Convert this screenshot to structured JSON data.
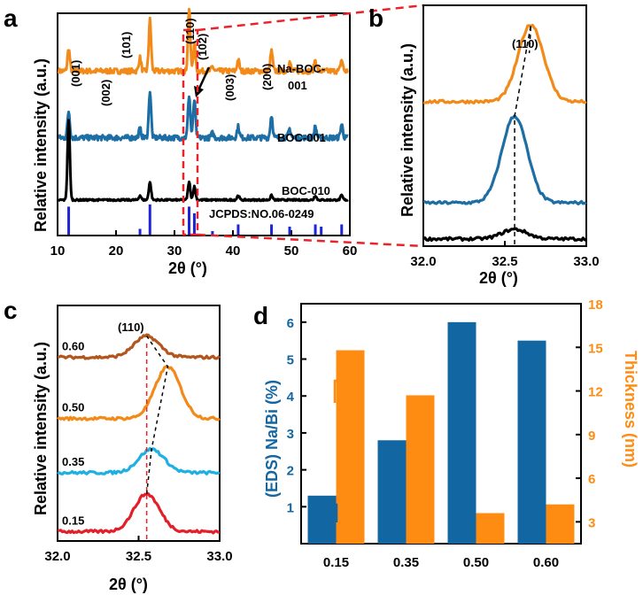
{
  "colors": {
    "orange": "#f28a1a",
    "blue": "#1c6ea4",
    "black": "#000000",
    "stick": "#1f24d6",
    "red_dash": "#e8242a",
    "brown": "#b3561d",
    "lightblue": "#1fb0e2",
    "red": "#e3202a",
    "bar_blue": "#1266a2",
    "bar_orange": "#ff8c12"
  },
  "chart_data": [
    {
      "panel": "a",
      "type": "line",
      "xlabel": "2θ (°)",
      "ylabel": "Relative intensity (a.u.)",
      "xlim": [
        10,
        60
      ],
      "xticks": [
        "10",
        "20",
        "30",
        "40",
        "50",
        "60"
      ],
      "series": [
        {
          "name": "Na-BOC-001",
          "label_lines": [
            "Na-BOC-",
            "001"
          ],
          "color": "#f28a1a",
          "baseline": 0.74,
          "noise": 0.012,
          "peaks": [
            [
              11.9,
              0.1
            ],
            [
              24.1,
              0.06
            ],
            [
              25.8,
              0.23
            ],
            [
              32.5,
              0.28
            ],
            [
              33.4,
              0.12
            ],
            [
              36.5,
              0.02
            ],
            [
              40.9,
              0.05
            ],
            [
              46.6,
              0.09
            ],
            [
              49.7,
              0.04
            ],
            [
              54.1,
              0.05
            ],
            [
              58.6,
              0.05
            ]
          ]
        },
        {
          "name": "BOC-001",
          "color": "#1c6ea4",
          "baseline": 0.44,
          "noise": 0.012,
          "peaks": [
            [
              11.9,
              0.12
            ],
            [
              24.1,
              0.04
            ],
            [
              25.8,
              0.21
            ],
            [
              32.5,
              0.19
            ],
            [
              33.4,
              0.17
            ],
            [
              36.5,
              0.02
            ],
            [
              40.9,
              0.05
            ],
            [
              46.6,
              0.1
            ],
            [
              49.7,
              0.04
            ],
            [
              54.1,
              0.05
            ],
            [
              58.6,
              0.06
            ]
          ]
        },
        {
          "name": "BOC-010",
          "color": "#000000",
          "baseline": 0.16,
          "noise": 0.004,
          "peaks": [
            [
              11.9,
              0.36
            ],
            [
              24.1,
              0.02
            ],
            [
              25.8,
              0.08
            ],
            [
              32.5,
              0.08
            ],
            [
              33.4,
              0.06
            ],
            [
              40.9,
              0.02
            ],
            [
              46.6,
              0.02
            ],
            [
              54.1,
              0.02
            ],
            [
              58.6,
              0.02
            ]
          ]
        }
      ],
      "reference": {
        "name": "JCPDS:NO.06-0249",
        "sticks": [
          [
            11.9,
            0.13
          ],
          [
            24.1,
            0.03
          ],
          [
            25.8,
            0.14
          ],
          [
            32.5,
            0.13
          ],
          [
            33.4,
            0.1
          ],
          [
            36.5,
            0.02
          ],
          [
            40.9,
            0.05
          ],
          [
            46.6,
            0.05
          ],
          [
            49.7,
            0.04
          ],
          [
            54.1,
            0.05
          ],
          [
            55.1,
            0.04
          ],
          [
            58.6,
            0.05
          ]
        ]
      },
      "annotations": [
        "(001)",
        "(002)",
        "(101)",
        "(110)",
        "(102)",
        "(003)",
        "(200)"
      ]
    },
    {
      "panel": "b",
      "type": "line",
      "xlabel": "2θ (°)",
      "ylabel": "Relative intensity (a.u.)",
      "xlim": [
        32.0,
        33.0
      ],
      "xticks": [
        "32.0",
        "32.5",
        "33.0"
      ],
      "annotation": "(110)",
      "series": [
        {
          "name": "Na-BOC-001",
          "color": "#f28a1a",
          "peak_x": 32.66,
          "baseline": 0.6,
          "height": 0.32
        },
        {
          "name": "BOC-001",
          "color": "#1c6ea4",
          "peak_x": 32.56,
          "baseline": 0.18,
          "height": 0.36
        },
        {
          "name": "BOC-010",
          "color": "#000000",
          "peak_x": 32.56,
          "baseline": 0.03,
          "height": 0.04
        }
      ]
    },
    {
      "panel": "c",
      "type": "line",
      "xlabel": "2θ (°)",
      "ylabel": "Relative intensity (a.u.)",
      "xlim": [
        32.0,
        33.0
      ],
      "xticks": [
        "32.0",
        "32.5",
        "33.0"
      ],
      "annotation": "(110)",
      "series": [
        {
          "name": "0.60",
          "color": "#b3561d",
          "peak_x": 32.55,
          "baseline": 0.78,
          "height": 0.09
        },
        {
          "name": "0.50",
          "color": "#f28a1a",
          "peak_x": 32.68,
          "baseline": 0.52,
          "height": 0.22
        },
        {
          "name": "0.35",
          "color": "#1fb0e2",
          "peak_x": 32.58,
          "baseline": 0.29,
          "height": 0.1
        },
        {
          "name": "0.15",
          "color": "#e3202a",
          "peak_x": 32.55,
          "baseline": 0.04,
          "height": 0.16
        }
      ]
    },
    {
      "panel": "d",
      "type": "bar",
      "categories": [
        "0.15",
        "0.35",
        "0.50",
        "0.60"
      ],
      "series": [
        {
          "name": "(EDS) Na/Bi (%)",
          "axis": "left",
          "color": "#1266a2",
          "values": [
            1.3,
            2.8,
            6.0,
            5.5
          ]
        },
        {
          "name": "Thickness (nm)",
          "axis": "right",
          "color": "#ff8c12",
          "values": [
            14.8,
            11.7,
            3.6,
            4.2
          ]
        }
      ],
      "ylabel": "(EDS) Na/Bi (%)",
      "y2label": "Thickness (nm)",
      "ylim": [
        0,
        6.5
      ],
      "yticks": [
        "1",
        "2",
        "3",
        "4",
        "5",
        "6"
      ],
      "y2lim": [
        1.5,
        18
      ],
      "y2ticks": [
        "3",
        "6",
        "9",
        "12",
        "15",
        "18"
      ]
    }
  ],
  "panels": {
    "a": "a",
    "b": "b",
    "c": "c",
    "d": "d"
  }
}
